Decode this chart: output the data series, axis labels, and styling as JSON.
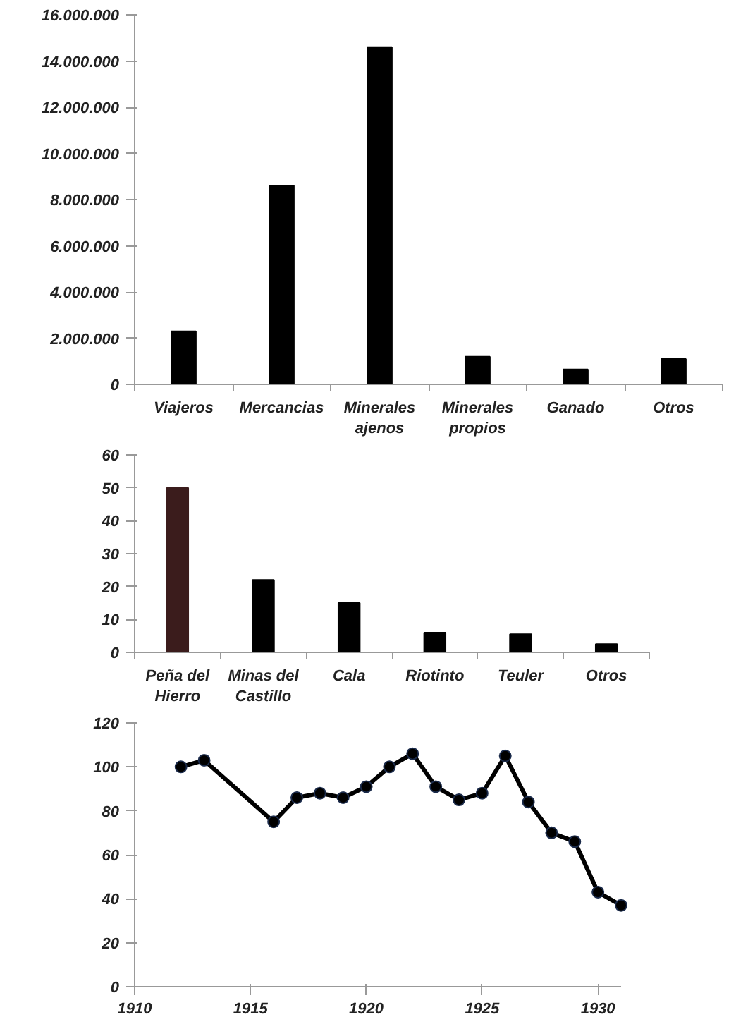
{
  "chart_data": [
    {
      "type": "bar",
      "categories": [
        "Viajeros",
        "Mercancias",
        "Minerales\najenos",
        "Minerales\npropios",
        "Ganado",
        "Otros"
      ],
      "values": [
        2300000,
        8600000,
        14600000,
        1200000,
        650000,
        1100000
      ],
      "color": "#000000",
      "ylim": [
        0,
        16000000
      ],
      "yticks": [
        {
          "value": 0,
          "label": "0"
        },
        {
          "value": 2000000,
          "label": "2.000.000"
        },
        {
          "value": 4000000,
          "label": "4.000.000"
        },
        {
          "value": 6000000,
          "label": "6.000.000"
        },
        {
          "value": 8000000,
          "label": "8.000.000"
        },
        {
          "value": 10000000,
          "label": "10.000.000"
        },
        {
          "value": 12000000,
          "label": "12.000.000"
        },
        {
          "value": 14000000,
          "label": "14.000.000"
        },
        {
          "value": 16000000,
          "label": "16.000.000"
        }
      ],
      "grid": false
    },
    {
      "type": "bar",
      "categories": [
        "Peña del\nHierro",
        "Minas del\nCastillo",
        "Cala",
        "Riotinto",
        "Teuler",
        "Otros"
      ],
      "values": [
        50,
        22,
        15,
        6,
        5.5,
        2.5
      ],
      "colors": [
        "#3b1c1c",
        "#000000",
        "#000000",
        "#000000",
        "#000000",
        "#000000"
      ],
      "ylim": [
        0,
        60
      ],
      "yticks": [
        0,
        10,
        20,
        30,
        40,
        50,
        60
      ],
      "grid": false
    },
    {
      "type": "line",
      "x": [
        1912,
        1913,
        1916,
        1917,
        1918,
        1919,
        1920,
        1921,
        1922,
        1923,
        1924,
        1925,
        1926,
        1927,
        1928,
        1929,
        1930,
        1931
      ],
      "values": [
        100,
        103,
        75,
        86,
        88,
        86,
        91,
        100,
        106,
        91,
        85,
        88,
        105,
        84,
        70,
        66,
        43,
        37
      ],
      "color": "#000000",
      "marker": "circle",
      "line_style": "solid",
      "xlim": [
        1910,
        1931
      ],
      "xticks": [
        1910,
        1915,
        1920,
        1925,
        1930
      ],
      "ylim": [
        0,
        120
      ],
      "yticks": [
        0,
        20,
        40,
        60,
        80,
        100,
        120
      ],
      "grid": false
    }
  ]
}
